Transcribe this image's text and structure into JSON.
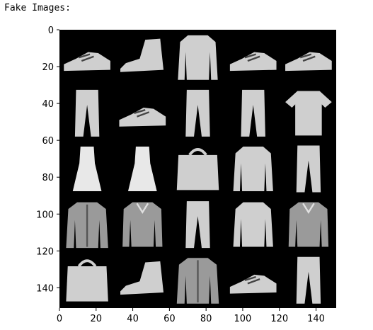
{
  "output_text": "Fake Images:",
  "chart_data": {
    "type": "image",
    "grid_rows": 5,
    "grid_cols": 5,
    "xlim": [
      0,
      151
    ],
    "ylim": [
      151,
      0
    ],
    "xticks": [
      0,
      20,
      40,
      60,
      80,
      100,
      120,
      140
    ],
    "yticks": [
      0,
      20,
      40,
      60,
      80,
      100,
      120,
      140
    ],
    "cells": [
      [
        "sneaker",
        "ankle-boot",
        "pullover",
        "sneaker",
        "sneaker"
      ],
      [
        "trouser",
        "sneaker",
        "trouser",
        "trouser",
        "tshirt"
      ],
      [
        "dress",
        "dress",
        "bag",
        "pullover",
        "trouser"
      ],
      [
        "coat",
        "shirt",
        "trouser",
        "pullover",
        "shirt"
      ],
      [
        "bag",
        "ankle-boot",
        "coat",
        "sneaker",
        "trouser"
      ]
    ]
  },
  "colors": {
    "image_background": "#000000",
    "item_gray": "#cfcfcf"
  }
}
